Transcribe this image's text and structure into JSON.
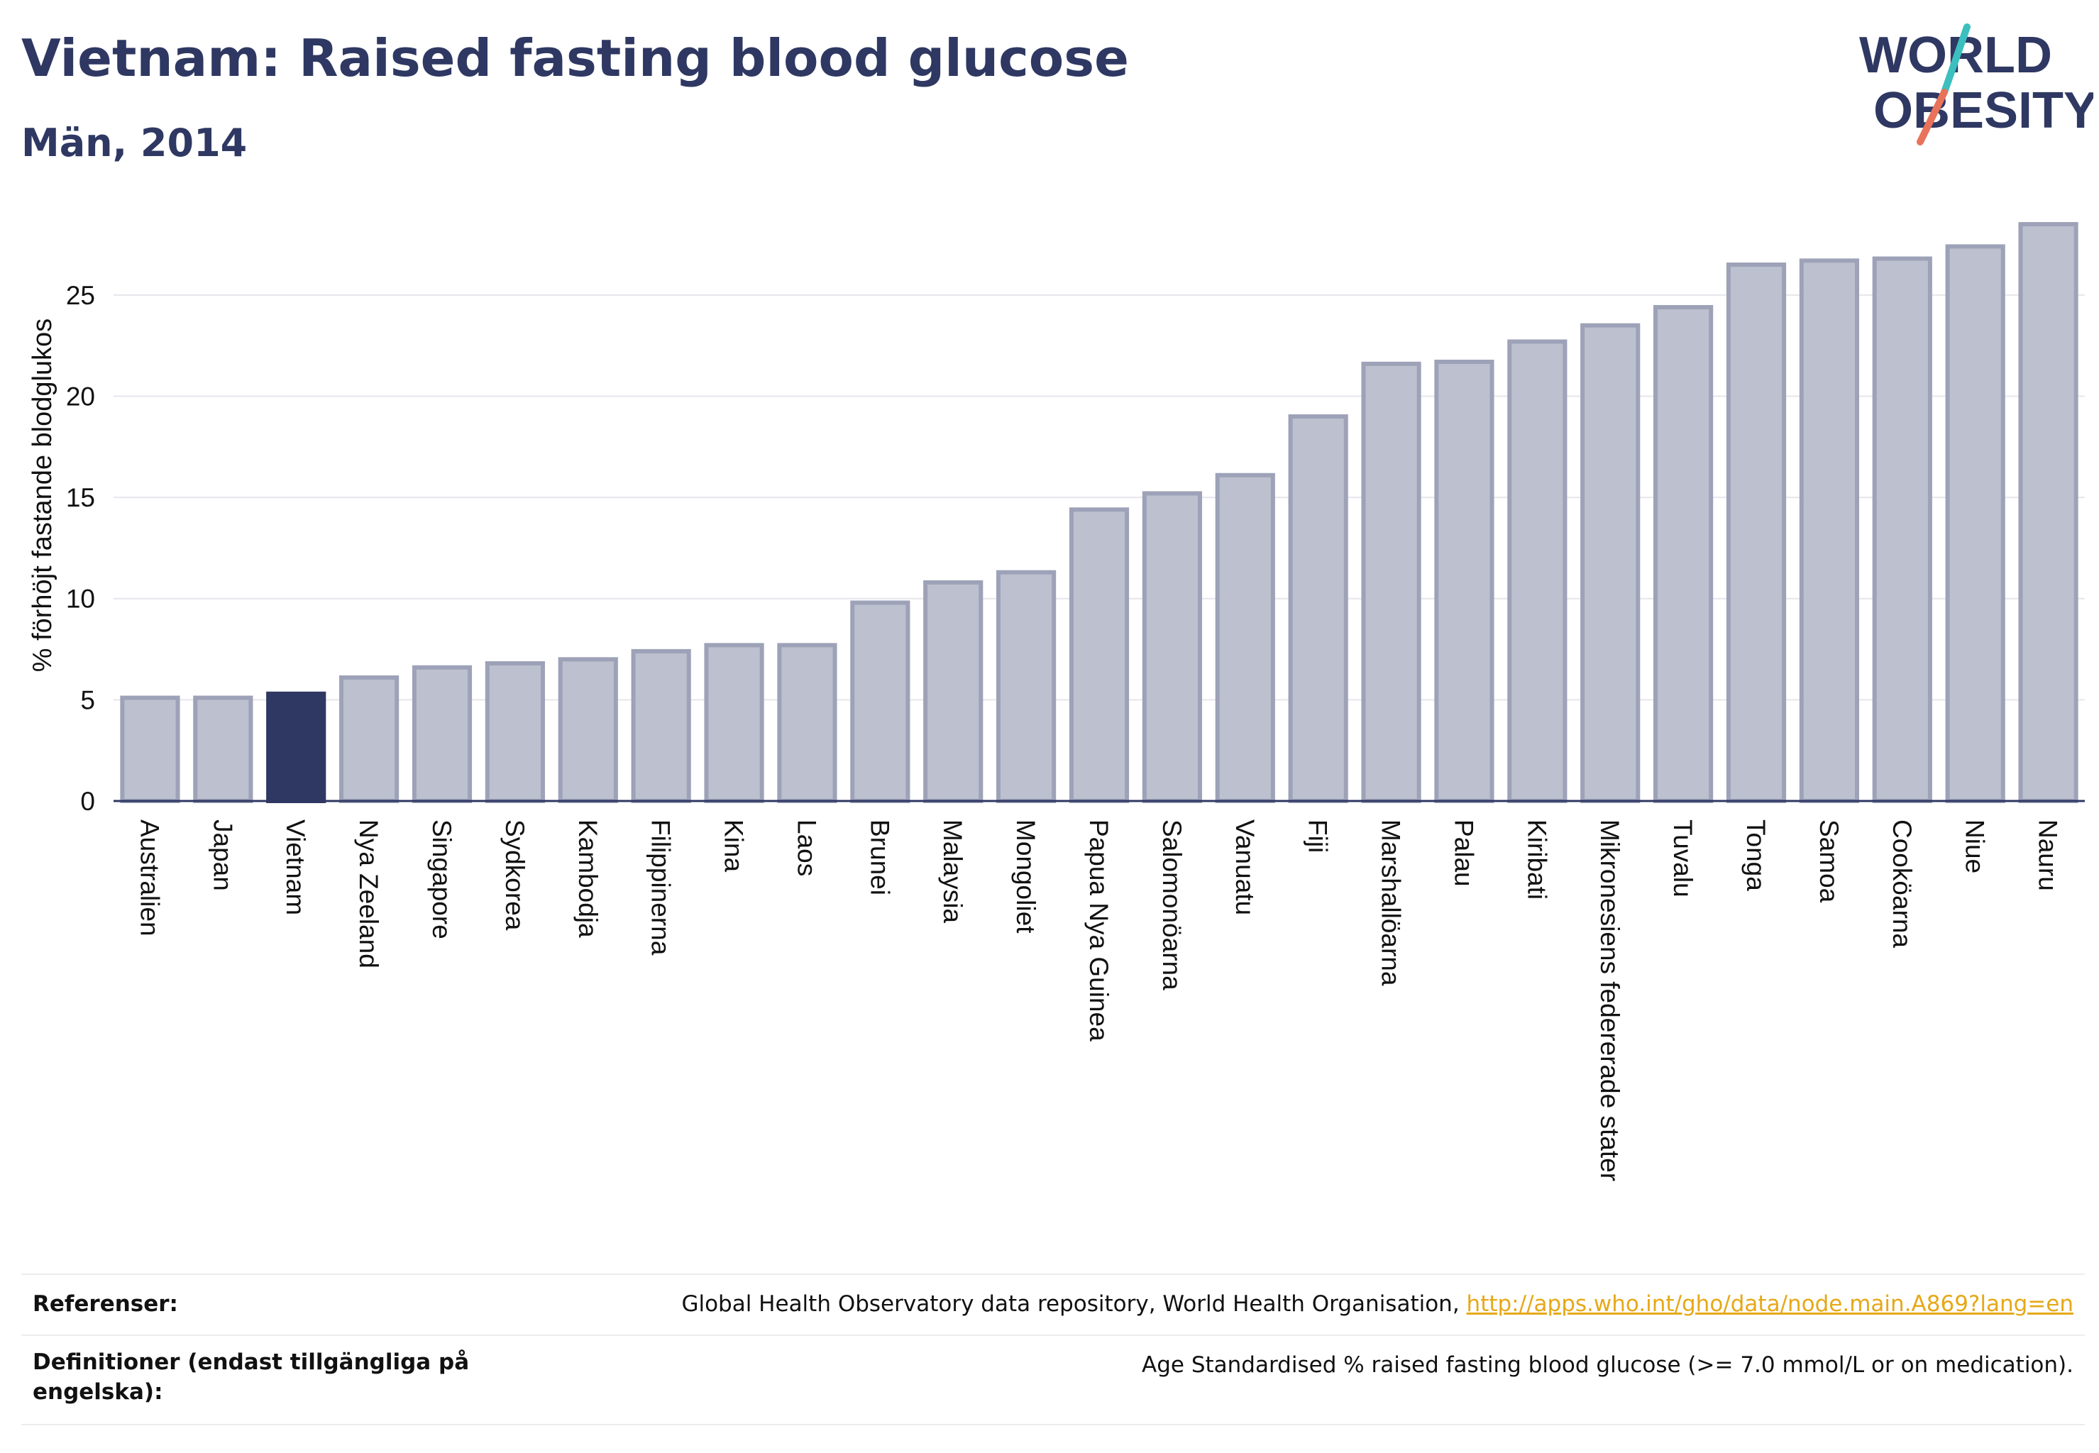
{
  "header": {
    "title": "Vietnam: Raised fasting blood glucose",
    "subtitle": "Män, 2014"
  },
  "logo": {
    "line1": "WORLD",
    "line2": "OBESITY",
    "colors": {
      "text": "#2e3862",
      "slash_top": "#3bbfbf",
      "slash_bottom": "#e8735a"
    }
  },
  "chart_data": {
    "type": "bar",
    "ylabel": "% förhöjt fastande blodglukos",
    "xlabel": "",
    "ylim": [
      0,
      28.5
    ],
    "yticks": [
      0,
      5,
      10,
      15,
      20,
      25
    ],
    "grid": true,
    "highlight": "Vietnam",
    "colors": {
      "bar": "#bcc0cf",
      "bar_border": "#9da2b8",
      "highlight": "#2e3862",
      "grid": "#e6e6ec",
      "axis": "#2e3862"
    },
    "categories": [
      "Australien",
      "Japan",
      "Vietnam",
      "Nya Zeeland",
      "Singapore",
      "Sydkorea",
      "Kambodja",
      "Filippinerna",
      "Kina",
      "Laos",
      "Brunei",
      "Malaysia",
      "Mongoliet",
      "Papua Nya Guinea",
      "Salomonöarna",
      "Vanuatu",
      "Fiji",
      "Marshallöarna",
      "Palau",
      "Kiribati",
      "Mikronesiens federerade stater",
      "Tuvalu",
      "Tonga",
      "Samoa",
      "Cooköarna",
      "Niue",
      "Nauru"
    ],
    "values": [
      5.1,
      5.1,
      5.3,
      6.1,
      6.6,
      6.8,
      7.0,
      7.4,
      7.7,
      7.7,
      9.8,
      10.8,
      11.3,
      14.4,
      15.2,
      16.1,
      19.0,
      21.6,
      21.7,
      22.7,
      23.5,
      24.4,
      26.5,
      26.7,
      26.8,
      27.4,
      28.5
    ]
  },
  "references": {
    "label": "Referenser:",
    "text": "Global Health Observatory data repository, World Health Organisation, ",
    "link": "http://apps.who.int/gho/data/node.main.A869?lang=en"
  },
  "definitions": {
    "label": "Definitioner (endast tillgängliga på engelska):",
    "text": "Age Standardised % raised fasting blood glucose (>= 7.0 mmol/L or on medication)."
  }
}
